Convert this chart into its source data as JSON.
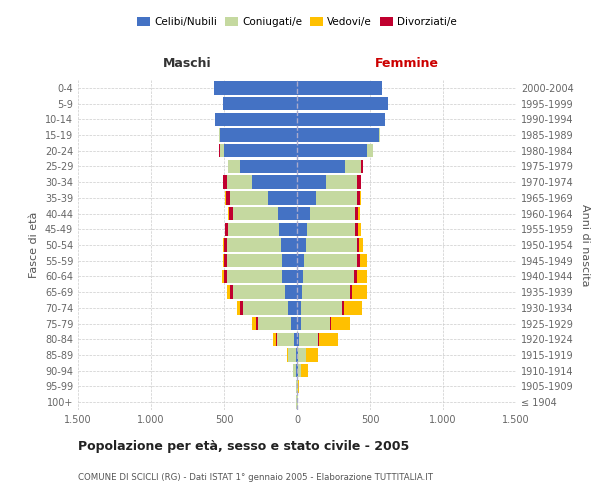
{
  "age_groups": [
    "100+",
    "95-99",
    "90-94",
    "85-89",
    "80-84",
    "75-79",
    "70-74",
    "65-69",
    "60-64",
    "55-59",
    "50-54",
    "45-49",
    "40-44",
    "35-39",
    "30-34",
    "25-29",
    "20-24",
    "15-19",
    "10-14",
    "5-9",
    "0-4"
  ],
  "birth_years": [
    "≤ 1904",
    "1905-1909",
    "1910-1914",
    "1915-1919",
    "1920-1924",
    "1925-1929",
    "1930-1934",
    "1935-1939",
    "1940-1944",
    "1945-1949",
    "1950-1954",
    "1955-1959",
    "1960-1964",
    "1965-1969",
    "1970-1974",
    "1975-1979",
    "1980-1984",
    "1985-1989",
    "1990-1994",
    "1995-1999",
    "2000-2004"
  ],
  "maschi": {
    "celibi": [
      2,
      2,
      5,
      10,
      20,
      40,
      60,
      80,
      100,
      100,
      110,
      120,
      130,
      200,
      310,
      390,
      500,
      530,
      560,
      510,
      570
    ],
    "coniugati": [
      2,
      5,
      20,
      50,
      120,
      230,
      310,
      360,
      380,
      380,
      370,
      350,
      310,
      260,
      170,
      80,
      30,
      5,
      0,
      0,
      0
    ],
    "vedovi": [
      0,
      0,
      5,
      10,
      20,
      30,
      20,
      20,
      15,
      10,
      5,
      5,
      5,
      5,
      0,
      0,
      0,
      0,
      0,
      0,
      0
    ],
    "divorziati": [
      0,
      0,
      0,
      0,
      5,
      10,
      20,
      20,
      20,
      20,
      20,
      20,
      25,
      25,
      25,
      5,
      5,
      0,
      0,
      0,
      0
    ]
  },
  "femmine": {
    "nubili": [
      2,
      2,
      5,
      10,
      15,
      25,
      30,
      35,
      40,
      50,
      60,
      70,
      90,
      130,
      200,
      330,
      480,
      560,
      600,
      620,
      580
    ],
    "coniugate": [
      2,
      5,
      20,
      50,
      130,
      200,
      280,
      330,
      350,
      360,
      350,
      330,
      310,
      280,
      210,
      110,
      40,
      10,
      0,
      0,
      0
    ],
    "vedove": [
      2,
      5,
      50,
      80,
      130,
      130,
      120,
      100,
      70,
      50,
      30,
      20,
      10,
      5,
      5,
      5,
      0,
      0,
      0,
      0,
      0
    ],
    "divorziate": [
      0,
      0,
      0,
      5,
      5,
      10,
      15,
      15,
      20,
      20,
      15,
      15,
      20,
      20,
      25,
      10,
      0,
      0,
      0,
      0,
      0
    ]
  },
  "colors": {
    "celibi": "#4472c4",
    "coniugati": "#c5d9a0",
    "vedovi": "#ffc000",
    "divorziati": "#c0002f"
  },
  "xlim": 1500,
  "title": "Popolazione per età, sesso e stato civile - 2005",
  "subtitle": "COMUNE DI SCICLI (RG) - Dati ISTAT 1° gennaio 2005 - Elaborazione TUTTITALIA.IT",
  "label_maschi": "Maschi",
  "label_femmine": "Femmine",
  "ylabel_left": "Fasce di età",
  "ylabel_right": "Anni di nascita",
  "legend_labels": [
    "Celibi/Nubili",
    "Coniugati/e",
    "Vedovi/e",
    "Divorziati/e"
  ],
  "xtick_labels": [
    "1.500",
    "1.000",
    "500",
    "0",
    "500",
    "1.000",
    "1.500"
  ],
  "xtick_vals": [
    -1500,
    -1000,
    -500,
    0,
    500,
    1000,
    1500
  ],
  "bar_height": 0.85
}
